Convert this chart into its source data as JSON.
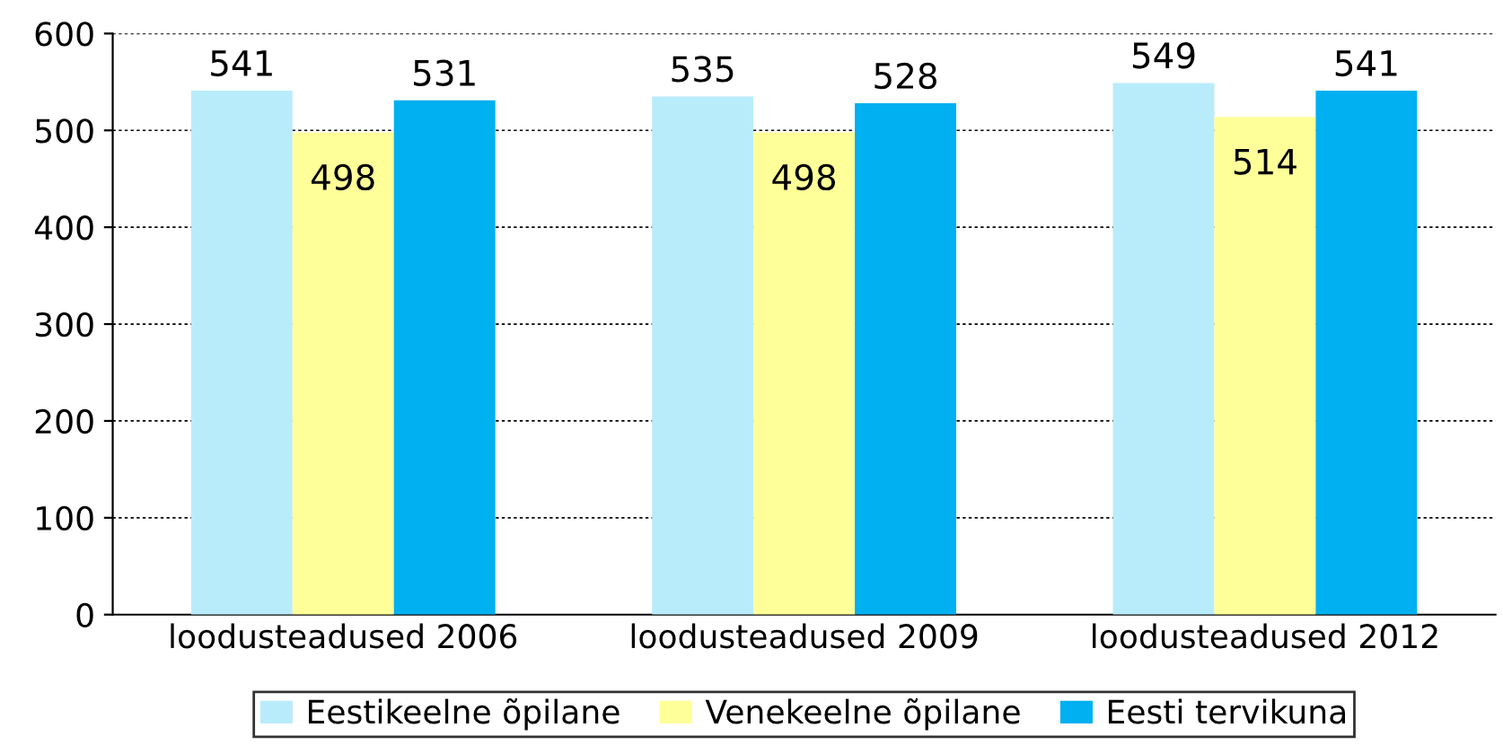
{
  "chart_data": {
    "type": "bar",
    "categories": [
      "loodusteadused 2006",
      "loodusteadused 2009",
      "loodusteadused 2012"
    ],
    "series": [
      {
        "name": "Eestikeelne õpilane",
        "color": "#b9ecfb",
        "values": [
          541,
          535,
          549
        ]
      },
      {
        "name": "Venekeelne õpilane",
        "color": "#ffff99",
        "values": [
          498,
          498,
          514
        ]
      },
      {
        "name": "Eesti tervikuna",
        "color": "#00b0f0",
        "values": [
          531,
          528,
          541
        ]
      }
    ],
    "ylim": [
      0,
      600
    ],
    "yticks": [
      0,
      100,
      200,
      300,
      400,
      500,
      600
    ],
    "grid": "y",
    "legend": "bottom",
    "data_labels": true
  }
}
